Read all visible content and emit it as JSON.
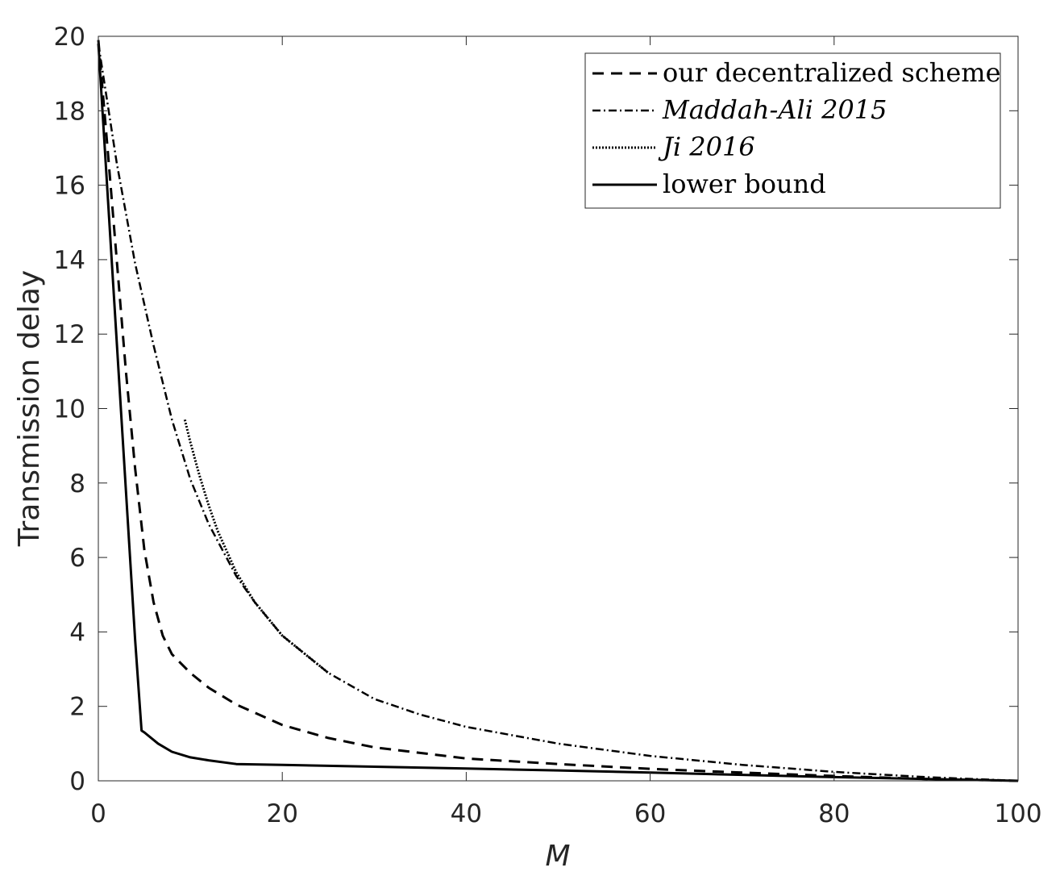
{
  "chart_data": {
    "type": "line",
    "title": "",
    "xlabel": "M",
    "ylabel": "Transmission delay",
    "xlim": [
      0,
      100
    ],
    "ylim": [
      0,
      20
    ],
    "xticks": [
      0,
      20,
      40,
      60,
      80,
      100
    ],
    "yticks": [
      0,
      2,
      4,
      6,
      8,
      10,
      12,
      14,
      16,
      18,
      20
    ],
    "grid": false,
    "legend_position": "top-right",
    "series": [
      {
        "name": "our decentralized scheme",
        "style": "dashed",
        "italic": false,
        "x": [
          0,
          1,
          2,
          3,
          4,
          5,
          6,
          7,
          8,
          10,
          12,
          15,
          20,
          25,
          30,
          40,
          50,
          60,
          70,
          80,
          90,
          100
        ],
        "y": [
          19.9,
          17.0,
          14.0,
          11.0,
          8.4,
          6.2,
          4.8,
          3.9,
          3.4,
          2.9,
          2.5,
          2.05,
          1.5,
          1.15,
          0.9,
          0.6,
          0.45,
          0.32,
          0.22,
          0.13,
          0.05,
          0
        ]
      },
      {
        "name": "Maddah-Ali 2015",
        "style": "dashdot",
        "italic": true,
        "x": [
          0,
          2,
          4,
          6,
          8,
          10,
          12,
          15,
          17,
          20,
          25,
          30,
          35,
          40,
          50,
          60,
          70,
          80,
          90,
          100
        ],
        "y": [
          19.8,
          16.6,
          13.9,
          11.7,
          9.7,
          8.1,
          6.9,
          5.5,
          4.8,
          3.9,
          2.9,
          2.2,
          1.78,
          1.45,
          1.0,
          0.67,
          0.43,
          0.24,
          0.1,
          0
        ]
      },
      {
        "name": "Ji 2016",
        "style": "dotted",
        "italic": true,
        "x": [
          9.4,
          10,
          11,
          12,
          13,
          15,
          17,
          20,
          25
        ],
        "y": [
          9.7,
          9.1,
          8.2,
          7.4,
          6.7,
          5.6,
          4.8,
          3.9,
          2.9
        ]
      },
      {
        "name": "lower bound",
        "style": "solid",
        "italic": false,
        "x": [
          0,
          1,
          2,
          3,
          4,
          4.7,
          5,
          6.5,
          8,
          10,
          12,
          15,
          20,
          30,
          40,
          50,
          60,
          70,
          80,
          90,
          100
        ],
        "y": [
          19.8,
          15.8,
          11.8,
          7.8,
          3.8,
          1.35,
          1.3,
          1.0,
          0.78,
          0.63,
          0.55,
          0.45,
          0.43,
          0.38,
          0.33,
          0.28,
          0.22,
          0.16,
          0.1,
          0.05,
          0
        ]
      }
    ]
  }
}
